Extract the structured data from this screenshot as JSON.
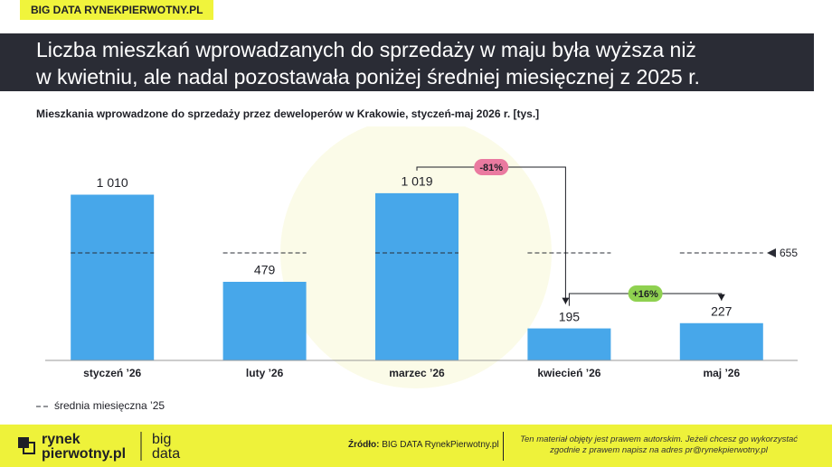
{
  "header": {
    "tag": "BIG DATA RYNEKPIERWOTNY.PL"
  },
  "chart_data": {
    "type": "bar",
    "title": [
      "Liczba mieszkań wprowadzanych do sprzedaży w maju była wyższa niż",
      "w kwietniu, ale nadal pozostawała poniżej średniej miesięcznej z 2025 r."
    ],
    "subtitle": "Mieszkania wprowadzone do sprzedaży przez deweloperów w Krakowie, styczeń-maj 2026 r. [tys.]",
    "categories": [
      "styczeń ’26",
      "luty ’26",
      "marzec ’26",
      "kwiecień ’26",
      "maj ’26"
    ],
    "values": [
      1010,
      479,
      1019,
      195,
      227
    ],
    "value_labels": [
      "1 010",
      "479",
      "1 019",
      "195",
      "227"
    ],
    "color": "#47a7ea",
    "ylim": [
      0,
      1200
    ],
    "average": {
      "name": "średnia miesięczna ’25",
      "value": 655,
      "color": "#2a2c35"
    },
    "annotations": [
      {
        "text": "-81%",
        "color": "#ea7aa0"
      },
      {
        "text": "+16%",
        "color": "#8fd150"
      }
    ]
  },
  "footer": {
    "logo": [
      "rynek",
      "pierwotny.pl",
      "big",
      "data"
    ],
    "source_label": "Źródło:",
    "source": "BIG DATA RynekPierwotny.pl",
    "note": [
      "Ten materiał objęty jest prawem autorskim. Jeżeli chcesz go wykorzystać",
      "zgodnie z prawem napisz na adres pr@rynekpierwotny.pl"
    ]
  }
}
